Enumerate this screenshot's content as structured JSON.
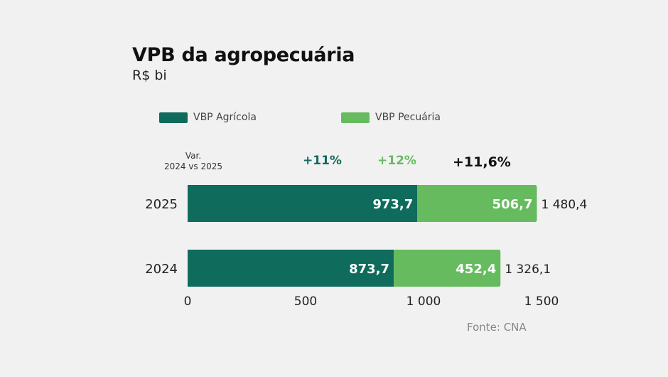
{
  "title": "VPB da agropecuária",
  "subtitle": "R$ bi",
  "legend": [
    {
      "label": "VBP Agrícola",
      "color": "#0f6b5c"
    },
    {
      "label": "VBP Pecuária",
      "color": "#66bb5f"
    }
  ],
  "variation": {
    "label_line1": "Var.",
    "label_line2": "2024 vs 2025",
    "agricola": "+11%",
    "pecuaria": "+12%",
    "total": "+11,6%"
  },
  "source": "Fonte: CNA",
  "chart_data": {
    "type": "bar",
    "orientation": "horizontal",
    "stacked": true,
    "categories": [
      "2025",
      "2024"
    ],
    "series": [
      {
        "name": "VBP Agrícola",
        "values": [
          973.7,
          873.7
        ],
        "labels": [
          "973,7",
          "873,7"
        ],
        "color": "#0f6b5c"
      },
      {
        "name": "VBP Pecuária",
        "values": [
          506.7,
          452.4
        ],
        "labels": [
          "506,7",
          "452,4"
        ],
        "color": "#66bb5f"
      }
    ],
    "totals": [
      "1 480,4",
      "1 326,1"
    ],
    "xlim": [
      0,
      1500
    ],
    "xticks": [
      0,
      500,
      1000,
      1500
    ],
    "xtick_labels": [
      "0",
      "500",
      "1 000",
      "1 500"
    ],
    "grid": false
  }
}
